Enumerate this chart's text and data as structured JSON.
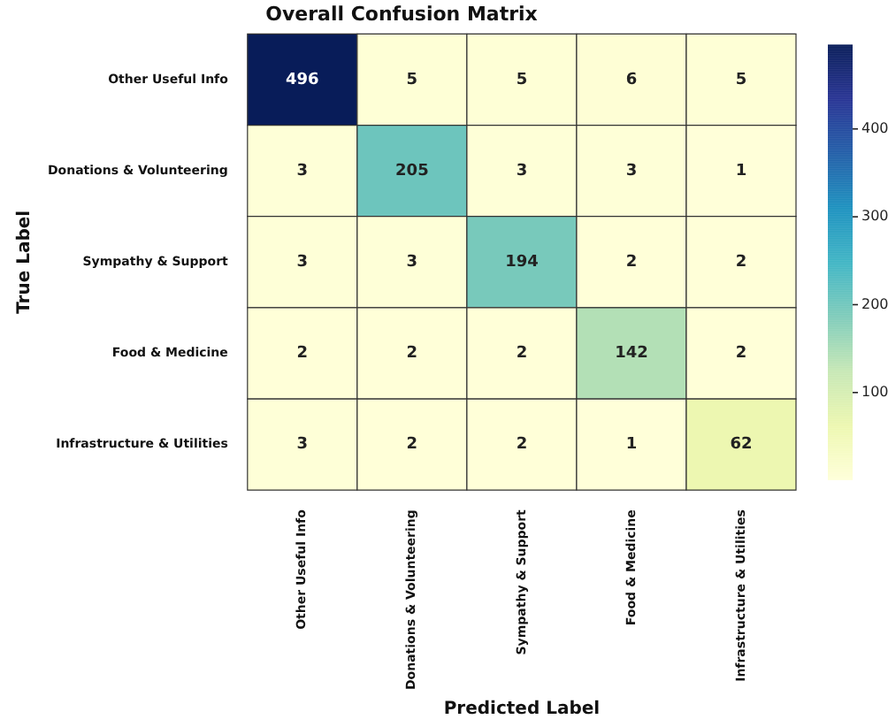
{
  "chart_data": {
    "type": "heatmap",
    "title": "Overall Confusion Matrix",
    "xlabel": "Predicted Label",
    "ylabel": "True Label",
    "categories": [
      "Other Useful Info",
      "Donations & Volunteering",
      "Sympathy & Support",
      "Food & Medicine",
      "Infrastructure & Utilities"
    ],
    "y_categories": [
      "Other Useful Info",
      "Donations & Volunteering",
      "Sympathy & Support",
      "Food & Medicine",
      "Infrastructure & Utilities"
    ],
    "cells": [
      [
        496,
        5,
        5,
        6,
        5
      ],
      [
        3,
        205,
        3,
        3,
        1
      ],
      [
        3,
        3,
        194,
        2,
        2
      ],
      [
        2,
        2,
        2,
        142,
        2
      ],
      [
        3,
        2,
        2,
        1,
        62
      ]
    ],
    "data_labels": true,
    "clim": [
      1,
      496
    ],
    "cticks": [
      100,
      200,
      300,
      400
    ]
  }
}
